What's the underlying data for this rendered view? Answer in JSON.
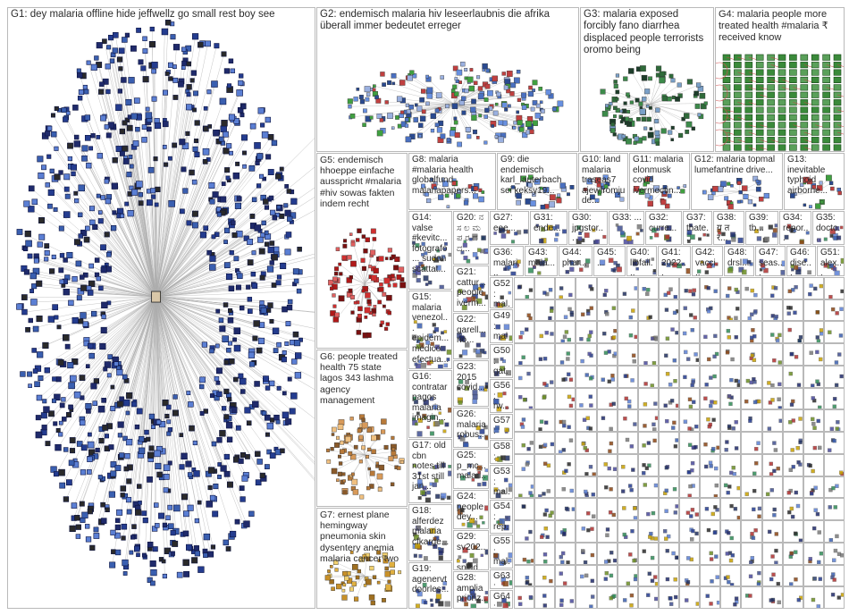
{
  "graph": {
    "groups": [
      {
        "id": "G1",
        "label": "G1: dey malaria offline hide jeffwellz go small rest boy see"
      },
      {
        "id": "G2",
        "label": "G2: endemisch malaria hiv leseerlaubnis die afrika überall immer bedeutet erreger"
      },
      {
        "id": "G3",
        "label": "G3: malaria exposed forcibly fano diarrhea displaced people terrorists oromo being"
      },
      {
        "id": "G4",
        "label": "G4: malaria people more treated health #malaria ₹ received know"
      },
      {
        "id": "G5",
        "label": "G5: endemisch hhoeppe einfache ausspricht #malaria #hiv sowas fakten indem recht"
      },
      {
        "id": "G6",
        "label": "G6: people treated health 75 state lagos 343 lashma agency management"
      },
      {
        "id": "G7",
        "label": "G7: ernest plane hemingway pneumonia skin dysentery anemia malaria cancer two"
      },
      {
        "id": "G8",
        "label": "G8: malaria #malaria health globalfund malariapapers..."
      },
      {
        "id": "G9",
        "label": "G9: die endemisch karl_lauterbach sei keksy19..."
      },
      {
        "id": "G10",
        "label": "G10: land malaria traseas7 ajewfromjude..."
      },
      {
        "id": "G11",
        "label": "G11: malaria elonmusk covid ivermectin..."
      },
      {
        "id": "G12",
        "label": "G12: malaria topmal lumefantrine drive..."
      },
      {
        "id": "G13",
        "label": "G13: inevitable typhoid airborne..."
      },
      {
        "id": "G14",
        "label": "G14: valse #kevitc... fotografo... sudan scattat..."
      },
      {
        "id": "G15",
        "label": "G15: malaria venezol... epidem... médico efectua..."
      },
      {
        "id": "G16",
        "label": "G16: contratar pagos malaria imagin..."
      },
      {
        "id": "G17",
        "label": "G17: old cbn notes till 31st still jan..."
      },
      {
        "id": "G18",
        "label": "G18: alferdez malaria cfkarge..."
      },
      {
        "id": "G19",
        "label": "G19: agenervt doorles..."
      },
      {
        "id": "G20",
        "label": "G20: ನ ಸ ಲ ಮ ಪ ರ ದ ದ..."
      },
      {
        "id": "G21",
        "label": "G21: cattur... people iverm..."
      },
      {
        "id": "G22",
        "label": "G22: garell... rio..."
      },
      {
        "id": "G23",
        "label": "G23: 2015 covid..."
      },
      {
        "id": "G24",
        "label": "G24: people dey..."
      },
      {
        "id": "G25",
        "label": "G25: p_mc... malari..."
      },
      {
        "id": "G26",
        "label": "G26: malaria robus..."
      },
      {
        "id": "G27",
        "label": "G27: eee..."
      },
      {
        "id": "G28",
        "label": "G28: amplia prioriz..."
      },
      {
        "id": "G29",
        "label": "G29: sv202... snigd..."
      },
      {
        "id": "G30",
        "label": "G30: jpgstor..."
      },
      {
        "id": "G31",
        "label": "G31: ende..."
      },
      {
        "id": "G32",
        "label": "G32: curre..."
      },
      {
        "id": "G33",
        "label": "G33: ..."
      },
      {
        "id": "G34",
        "label": "G34: repor..."
      },
      {
        "id": "G35",
        "label": "G35: docto..."
      },
      {
        "id": "G36",
        "label": "G36: malari..."
      },
      {
        "id": "G37",
        "label": "G37: thate..."
      },
      {
        "id": "G38",
        "label": "G38: य त र..."
      },
      {
        "id": "G39",
        "label": "G39: tb..."
      },
      {
        "id": "G40",
        "label": "G40: libfail..."
      },
      {
        "id": "G41",
        "label": "G41: 2022..."
      },
      {
        "id": "G42",
        "label": "G42: vacci..."
      },
      {
        "id": "G43",
        "label": "G43: mala..."
      },
      {
        "id": "G44",
        "label": "G44: phar..."
      },
      {
        "id": "G45",
        "label": "G45: ..."
      },
      {
        "id": "G46",
        "label": "G46: dise..."
      },
      {
        "id": "G47",
        "label": "G47: seas..."
      },
      {
        "id": "G48",
        "label": "G48: drsl..."
      },
      {
        "id": "G49",
        "label": "G49: malar..."
      },
      {
        "id": "G50",
        "label": "G50: gat..."
      },
      {
        "id": "G51",
        "label": "G51: alex..."
      },
      {
        "id": "G52",
        "label": "G52: mal..."
      },
      {
        "id": "G53",
        "label": "G53: mal..."
      },
      {
        "id": "G54",
        "label": "G54: rep..."
      },
      {
        "id": "G55",
        "label": "G55: mal..."
      },
      {
        "id": "G56",
        "label": "G56: rw..."
      },
      {
        "id": "G57",
        "label": "G57: cas..."
      },
      {
        "id": "G58",
        "label": "G58: art..."
      },
      {
        "id": "G63",
        "label": "G63: dey..."
      },
      {
        "id": "G64",
        "label": "G64: real..."
      }
    ]
  }
}
